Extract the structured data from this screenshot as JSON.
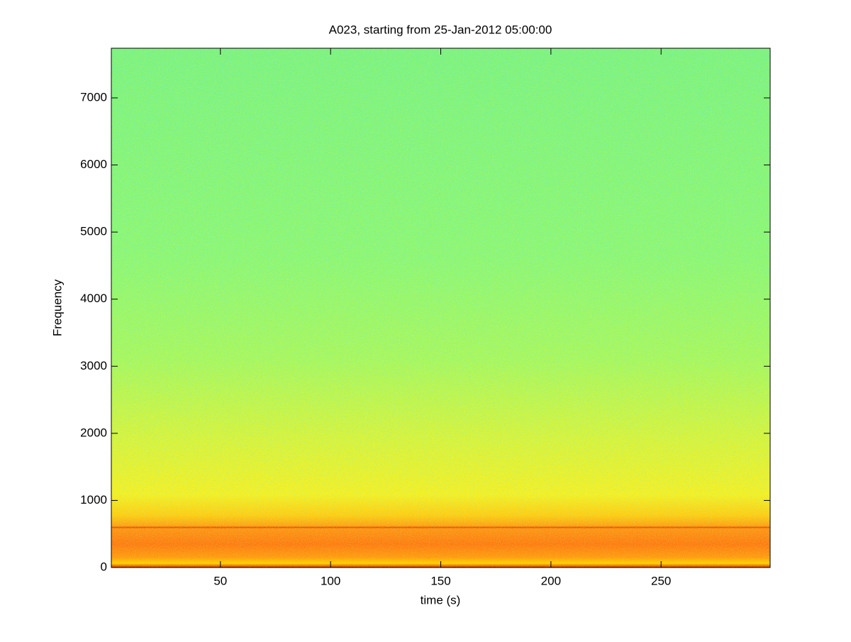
{
  "chart_data": {
    "type": "spectrogram",
    "title": "A023, starting from 25-Jan-2012 05:00:00",
    "x_label": "time (s)",
    "y_label": "Frequency",
    "xlim": [
      0.5,
      299.5
    ],
    "xticks": [
      50,
      100,
      150,
      200,
      250
    ],
    "ylim": [
      0,
      7740
    ],
    "yticks": [
      0,
      1000,
      2000,
      3000,
      4000,
      5000,
      6000,
      7000
    ]
  }
}
